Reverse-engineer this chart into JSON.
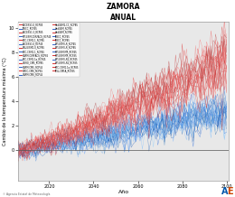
{
  "title": "ZAMORA",
  "subtitle": "ANUAL",
  "xlabel": "Año",
  "ylabel": "Cambio de la temperatura máxima (°C)",
  "xlim": [
    2006,
    2101
  ],
  "ylim": [
    -2.5,
    10.5
  ],
  "yticks": [
    0,
    2,
    4,
    6,
    8,
    10
  ],
  "xticks": [
    2020,
    2040,
    2060,
    2080,
    2100
  ],
  "start_year": 2006,
  "end_year": 2100,
  "n_rcp85": 23,
  "n_rcp45": 23,
  "background_color": "#e8e8e8",
  "hline_color": "#555555",
  "footer_text": "© Agencia Estatal de Meteorología",
  "legend_rcp85": [
    "ACCESS1.0_RCP85",
    "ACCESS1.3_RCP85",
    "BCC-CSM1.1_RCP85",
    "BNU-ESM1.0_RCP85",
    "CNRM-CERFACS_RCP85",
    "CSIRO_CM5_RCP85",
    "CMCC-CMS_RCP85",
    "HadGEM2-CC_RCP85",
    "HadGEM_RCP85",
    "IPBCC_RCP85",
    "MPI-ESM-LR_RCP85",
    "MPI-ESM-MR_RCP85",
    "MPI-ESM-LR2_RCP85",
    "BCC-CSM1.1a_RCP85",
    "IPSL-CM5A_RCP85"
  ],
  "legend_rcp45": [
    "IPBCC_RCP45",
    "MPI-ESM-CERFACS_RCP45",
    "ACCESS1.0_RCP45",
    "BCC-CSM1.1_RCP45",
    "BCC-CSM1.1a_RCP45",
    "CNRM-CM5_RCP45",
    "CNRM-CMS_RCP45",
    "HadGEM_RCP45",
    "IPBCC_RCP45",
    "MPI-ESM-LR_RCP45",
    "MPI-ESM-MR_RCP45",
    "MPI-ESM-LR2_RCP45"
  ],
  "red_shades": [
    "#FF4444",
    "#EE3333",
    "#DD2222",
    "#CC1111",
    "#FF6666",
    "#EE5555",
    "#DD4444",
    "#CC3333",
    "#BB2222",
    "#FF7777",
    "#EE6666",
    "#DD5555",
    "#CC4444",
    "#BB3333",
    "#AA2222",
    "#FF8888",
    "#EE7777",
    "#DD6666",
    "#CC5555",
    "#BB4444",
    "#AA3333",
    "#FF5555",
    "#EE4444"
  ],
  "blue_shades": [
    "#4488FF",
    "#3377EE",
    "#2266DD",
    "#1155CC",
    "#5599FF",
    "#4488EE",
    "#3377DD",
    "#2266CC",
    "#1155BB",
    "#66AAFF",
    "#5599EE",
    "#4488DD",
    "#3377CC",
    "#2266BB",
    "#1155AA",
    "#77BBFF",
    "#66AAEE",
    "#5599DD",
    "#4488CC",
    "#3377BB",
    "#2266AA",
    "#88CCFF",
    "#77BBEE"
  ]
}
